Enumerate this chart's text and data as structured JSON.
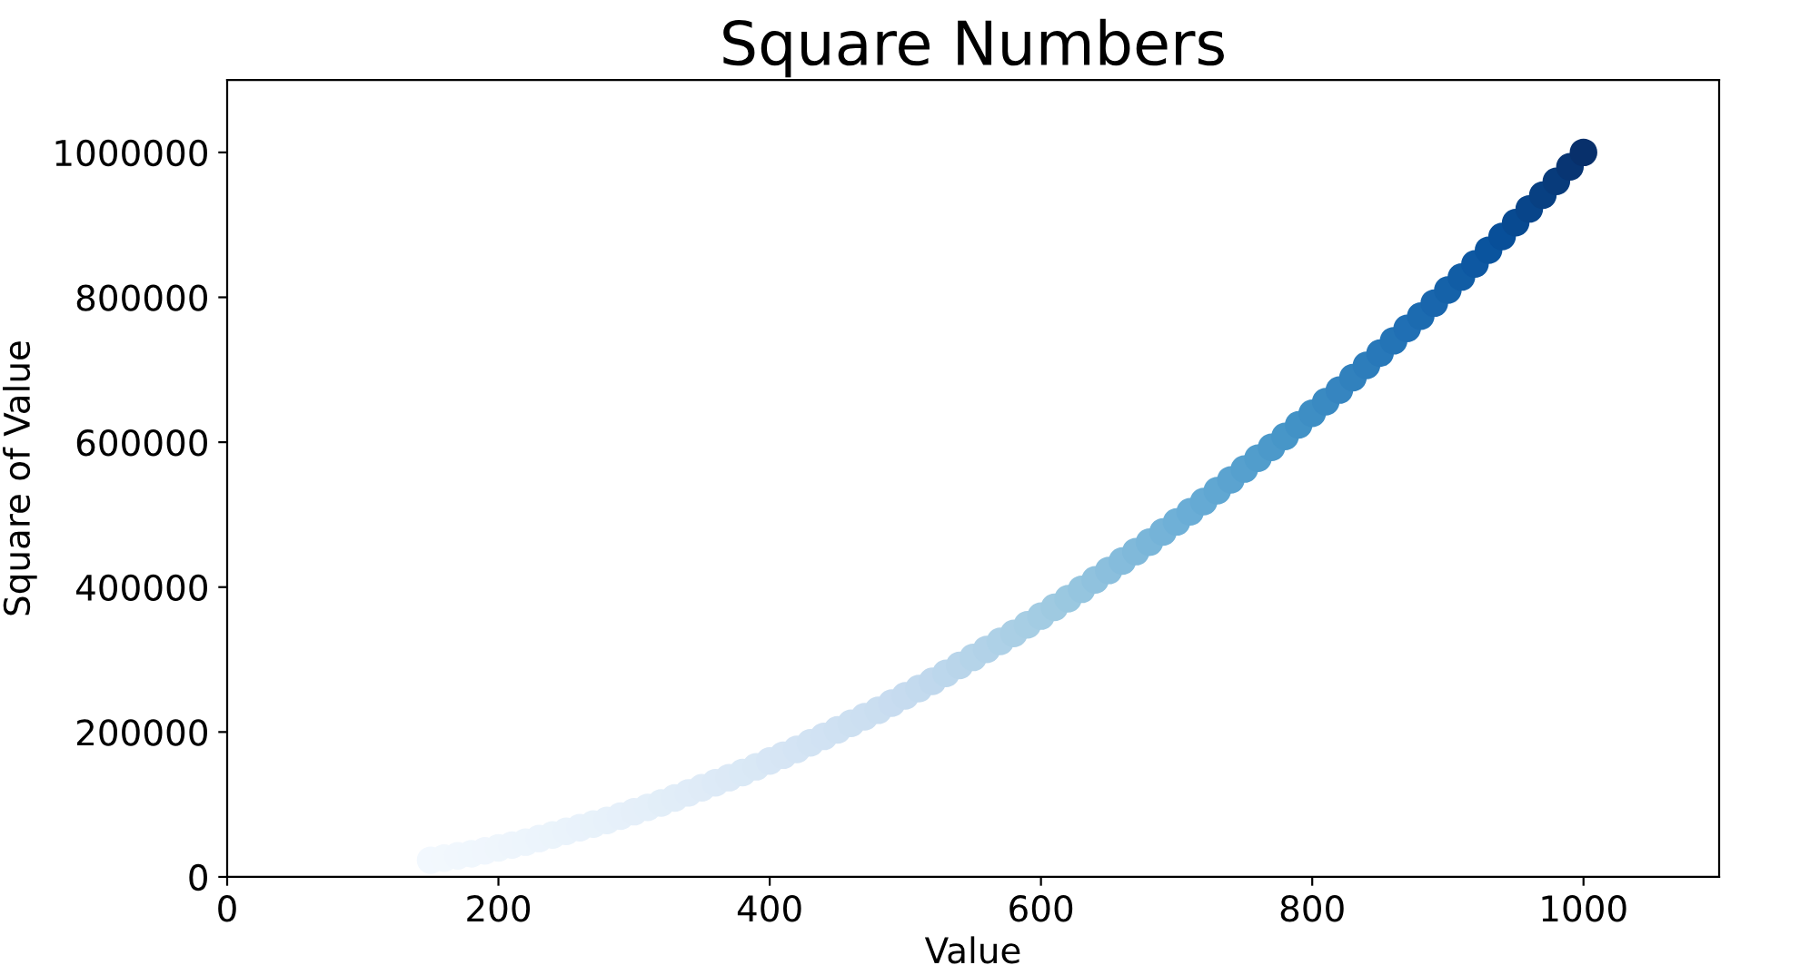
{
  "chart_data": {
    "type": "scatter",
    "title": "Square Numbers",
    "xlabel": "Value",
    "ylabel": "Square of Value",
    "marker": "circle",
    "xlim": [
      0,
      1100
    ],
    "ylim": [
      0,
      1100000
    ],
    "xticks": [
      0,
      200,
      400,
      600,
      800,
      1000
    ],
    "yticks": [
      0,
      200000,
      400000,
      600000,
      800000,
      1000000
    ],
    "x": [
      150,
      160,
      170,
      180,
      190,
      200,
      210,
      220,
      230,
      240,
      250,
      260,
      270,
      280,
      290,
      300,
      310,
      320,
      330,
      340,
      350,
      360,
      370,
      380,
      390,
      400,
      410,
      420,
      430,
      440,
      450,
      460,
      470,
      480,
      490,
      500,
      510,
      520,
      530,
      540,
      550,
      560,
      570,
      580,
      590,
      600,
      610,
      620,
      630,
      640,
      650,
      660,
      670,
      680,
      690,
      700,
      710,
      720,
      730,
      740,
      750,
      760,
      770,
      780,
      790,
      800,
      810,
      820,
      830,
      840,
      850,
      860,
      870,
      880,
      890,
      900,
      910,
      920,
      930,
      940,
      950,
      960,
      970,
      980,
      990,
      1000
    ],
    "values": [
      23000,
      26000,
      29000,
      32000,
      36000,
      40000,
      44000,
      48000,
      53000,
      58000,
      63000,
      68000,
      73000,
      78000,
      84000,
      90000,
      96000,
      102000,
      109000,
      116000,
      123000,
      130000,
      137000,
      144000,
      152000,
      160000,
      168000,
      176000,
      185000,
      194000,
      203000,
      212000,
      221000,
      230000,
      240000,
      250000,
      260000,
      270000,
      281000,
      292000,
      303000,
      314000,
      325000,
      336000,
      348000,
      360000,
      372000,
      384000,
      397000,
      410000,
      423000,
      436000,
      449000,
      462000,
      476000,
      490000,
      504000,
      518000,
      533000,
      548000,
      563000,
      578000,
      593000,
      608000,
      624000,
      640000,
      656000,
      672000,
      689000,
      706000,
      723000,
      740000,
      757000,
      774000,
      792000,
      810000,
      828000,
      846000,
      865000,
      884000,
      903000,
      922000,
      941000,
      960000,
      980000,
      1000000
    ],
    "colors": [
      "#f2f8fe",
      "#f2f8fd",
      "#f1f7fd",
      "#f0f7fd",
      "#f0f6fd",
      "#eff6fc",
      "#eef5fc",
      "#edf5fc",
      "#ecf4fc",
      "#ebf4fb",
      "#eaf3fb",
      "#e9f2fb",
      "#e8f2fa",
      "#e7f1fa",
      "#e6f0fa",
      "#e5eff9",
      "#e4eff9",
      "#e2eef8",
      "#e1edf8",
      "#e0ecf8",
      "#dfebf7",
      "#ddeaf7",
      "#dce9f6",
      "#dae9f6",
      "#d9e8f5",
      "#d7e6f5",
      "#d6e5f4",
      "#d4e4f4",
      "#d2e3f3",
      "#d1e2f3",
      "#cfe1f2",
      "#cde0f1",
      "#ccdff1",
      "#cadef0",
      "#c8dcf0",
      "#c6dbef",
      "#c3daee",
      "#c0d8ed",
      "#bcd7ec",
      "#b9d5ea",
      "#b5d4e9",
      "#b2d2e8",
      "#aed1e7",
      "#aacfe5",
      "#a7cee4",
      "#a3cce3",
      "#9fcae1",
      "#9ac8e0",
      "#95c5df",
      "#90c2de",
      "#8bbfdd",
      "#85bcdc",
      "#80b9da",
      "#7ab6d9",
      "#75b3d8",
      "#6fb0d7",
      "#6aadd6",
      "#65aad4",
      "#60a7d2",
      "#5ba3d0",
      "#56a0ce",
      "#519dcc",
      "#4c99ca",
      "#4796c8",
      "#4292c6",
      "#3e8ec4",
      "#3a8ac2",
      "#3685c0",
      "#3181bd",
      "#2d7dbb",
      "#2878b9",
      "#2474b6",
      "#206fb4",
      "#1c6bb0",
      "#1966ad",
      "#1562a9",
      "#115da5",
      "#0e58a2",
      "#0a549e",
      "#084f99",
      "#084a91",
      "#08458a",
      "#084082",
      "#083b7b",
      "#083573",
      "#08306b"
    ]
  }
}
